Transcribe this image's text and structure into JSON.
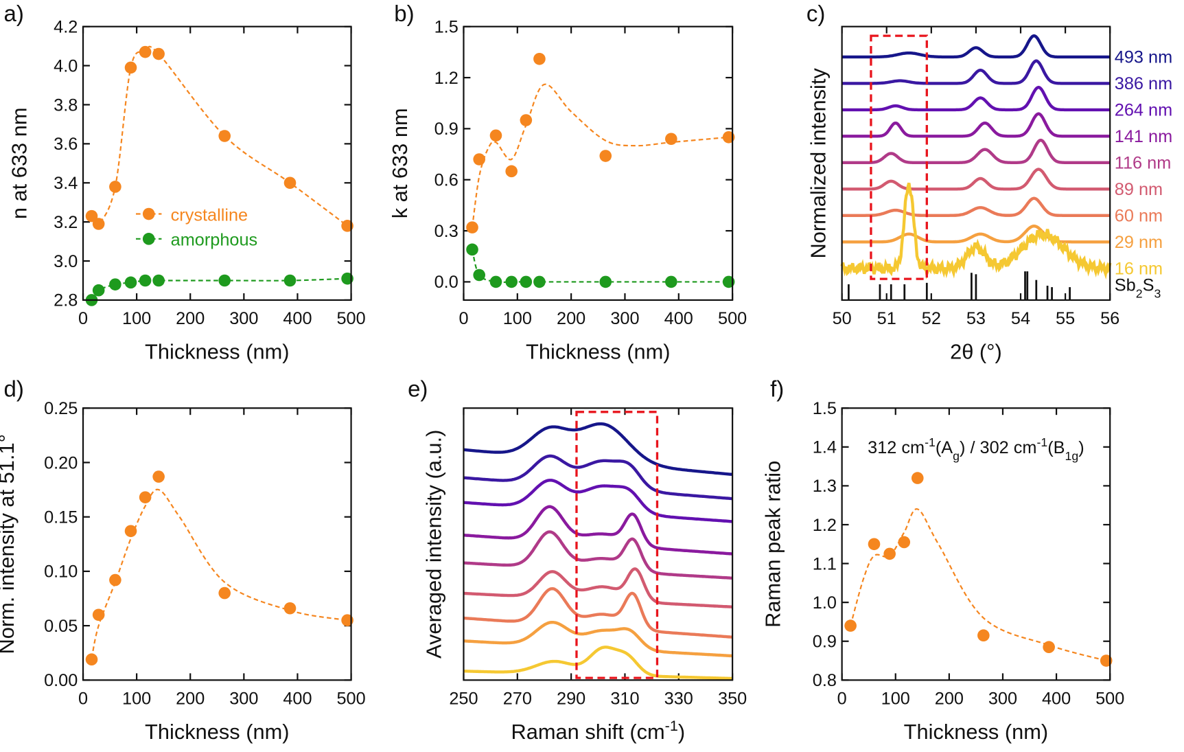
{
  "chart_data": [
    {
      "panel": "a)",
      "type": "scatter",
      "xlabel": "Thickness (nm)",
      "ylabel": "n at 633 nm",
      "xlim": [
        0,
        500
      ],
      "ylim": [
        2.8,
        4.2
      ],
      "xticks": [
        0,
        100,
        200,
        300,
        400,
        500
      ],
      "yticks": [
        2.8,
        3.0,
        3.2,
        3.4,
        3.6,
        3.8,
        4.0,
        4.2
      ],
      "ydec": 1,
      "legend": {
        "placement": "center-left",
        "entries": [
          "crystalline",
          "amorphous"
        ]
      },
      "series": [
        {
          "name": "crystalline",
          "color": "#f5861f",
          "x": [
            16,
            29,
            60,
            89,
            116,
            141,
            264,
            386,
            493
          ],
          "y": [
            3.23,
            3.19,
            3.38,
            3.99,
            4.07,
            4.06,
            3.64,
            3.4,
            3.18
          ]
        },
        {
          "name": "amorphous",
          "color": "#1e9a1e",
          "x": [
            16,
            29,
            60,
            89,
            116,
            141,
            264,
            386,
            493
          ],
          "y": [
            2.8,
            2.85,
            2.88,
            2.89,
            2.9,
            2.9,
            2.9,
            2.9,
            2.91
          ]
        }
      ]
    },
    {
      "panel": "b)",
      "type": "scatter",
      "xlabel": "Thickness (nm)",
      "ylabel": "k at 633 nm",
      "xlim": [
        0,
        500
      ],
      "ylim": [
        -0.107,
        1.5
      ],
      "xticks": [
        0,
        100,
        200,
        300,
        400,
        500
      ],
      "yticks": [
        0.0,
        0.3,
        0.6,
        0.9,
        1.2,
        1.5
      ],
      "ydec": 1,
      "series": [
        {
          "color": "#f5861f",
          "x": [
            16,
            29,
            60,
            89,
            116,
            141,
            264,
            386,
            493
          ],
          "y": [
            0.32,
            0.72,
            0.86,
            0.65,
            0.95,
            1.31,
            0.74,
            0.84,
            0.85
          ],
          "fit": {
            "x": [
              16,
              29,
              45,
              60,
              89,
              116,
              150,
              200,
              264,
              320,
              386,
              493
            ],
            "y": [
              0.32,
              0.62,
              0.78,
              0.82,
              0.72,
              0.92,
              1.16,
              1.0,
              0.83,
              0.8,
              0.82,
              0.85
            ]
          }
        },
        {
          "color": "#1e9a1e",
          "x": [
            16,
            29,
            60,
            89,
            116,
            141,
            264,
            386,
            493
          ],
          "y": [
            0.19,
            0.04,
            0.0,
            0.0,
            0.0,
            0.0,
            0.0,
            0.0,
            0.0
          ]
        }
      ]
    },
    {
      "panel": "c)",
      "type": "line",
      "xlabel": "2θ (°)",
      "ylabel": "Normalized intensity",
      "xlim": [
        50,
        56
      ],
      "ylim": [
        -1.2,
        9.15
      ],
      "xticks": [
        50,
        51,
        52,
        53,
        54,
        55,
        56
      ],
      "yticks": [],
      "highlight_box": {
        "x": [
          50.65,
          51.9
        ],
        "y": [
          -0.4,
          8.8
        ],
        "color": "#e8141c"
      },
      "reference": {
        "label": "Sb_{2}S_{3}",
        "positions": [
          50.15,
          50.85,
          51.1,
          51.4,
          51.9,
          52.9,
          53.0,
          54.1,
          54.15,
          54.35,
          54.6,
          54.7,
          55.1
        ],
        "intensity": [
          0.55,
          0.55,
          0.55,
          0.55,
          0.6,
          0.95,
          0.9,
          1.0,
          1.0,
          0.7,
          0.5,
          0.45,
          0.45
        ]
      },
      "traces": [
        {
          "label": "493 nm",
          "color": "#16168a",
          "offset": 8,
          "peaks": [
            [
              51.5,
              0.15,
              0.25
            ],
            [
              53.0,
              0.35,
              0.15
            ],
            [
              54.3,
              0.8,
              0.15
            ]
          ]
        },
        {
          "label": "386 nm",
          "color": "#3a18a2",
          "offset": 7,
          "peaks": [
            [
              51.3,
              0.1,
              0.2
            ],
            [
              53.1,
              0.5,
              0.15
            ],
            [
              54.35,
              0.85,
              0.15
            ]
          ]
        },
        {
          "label": "264 nm",
          "color": "#6210b0",
          "offset": 6,
          "peaks": [
            [
              51.2,
              0.15,
              0.15
            ],
            [
              53.1,
              0.45,
              0.15
            ],
            [
              54.4,
              0.85,
              0.15
            ]
          ]
        },
        {
          "label": "141 nm",
          "color": "#8a1a9e",
          "offset": 5,
          "peaks": [
            [
              51.2,
              0.5,
              0.12
            ],
            [
              53.2,
              0.5,
              0.15
            ],
            [
              54.4,
              0.85,
              0.15
            ]
          ]
        },
        {
          "label": "116 nm",
          "color": "#b03a88",
          "offset": 4,
          "peaks": [
            [
              51.1,
              0.35,
              0.15
            ],
            [
              53.2,
              0.5,
              0.17
            ],
            [
              54.45,
              0.85,
              0.15
            ]
          ]
        },
        {
          "label": "89 nm",
          "color": "#d25a70",
          "offset": 3,
          "peaks": [
            [
              51.1,
              0.3,
              0.15
            ],
            [
              53.1,
              0.4,
              0.15
            ],
            [
              54.4,
              0.75,
              0.17
            ]
          ]
        },
        {
          "label": "60 nm",
          "color": "#ea7a58",
          "offset": 2,
          "peaks": [
            [
              51.2,
              0.2,
              0.2
            ],
            [
              53.1,
              0.3,
              0.2
            ],
            [
              54.3,
              0.65,
              0.17
            ]
          ]
        },
        {
          "label": "29 nm",
          "color": "#f5a040",
          "offset": 1,
          "peaks": [
            [
              51.5,
              0.3,
              0.2
            ],
            [
              53.1,
              0.3,
              0.2
            ],
            [
              54.3,
              0.6,
              0.2
            ]
          ]
        },
        {
          "label": "16 nm",
          "color": "#f5c832",
          "offset": 0,
          "noise": 0.12,
          "peaks": [
            [
              51.5,
              3.2,
              0.1
            ],
            [
              53.0,
              0.8,
              0.2
            ],
            [
              54.5,
              1.3,
              0.45
            ]
          ]
        }
      ]
    },
    {
      "panel": "d)",
      "type": "scatter",
      "xlabel": "Thickness (nm)",
      "ylabel": "Norm. intensity at 51.1°",
      "xlim": [
        0,
        500
      ],
      "ylim": [
        0,
        0.25
      ],
      "xticks": [
        0,
        100,
        200,
        300,
        400,
        500
      ],
      "yticks": [
        0,
        0.05,
        0.1,
        0.15,
        0.2,
        0.25
      ],
      "ydec": 2,
      "series": [
        {
          "color": "#f5861f",
          "x": [
            16,
            29,
            60,
            89,
            116,
            141,
            264,
            386,
            493
          ],
          "y": [
            0.019,
            0.06,
            0.092,
            0.137,
            0.168,
            0.187,
            0.08,
            0.066,
            0.055
          ],
          "fit": {
            "x": [
              16,
              29,
              60,
              89,
              116,
              141,
              180,
              264,
              386,
              493
            ],
            "y": [
              0.02,
              0.05,
              0.09,
              0.13,
              0.16,
              0.175,
              0.15,
              0.09,
              0.064,
              0.055
            ]
          }
        }
      ]
    },
    {
      "panel": "e)",
      "type": "line",
      "xlabel": "Raman shift (cm^{-1})",
      "ylabel": "Averaged intensity (a.u.)",
      "xlim": [
        250,
        350
      ],
      "ylim": [
        0,
        10
      ],
      "xticks": [
        250,
        270,
        290,
        310,
        330,
        350
      ],
      "yticks": [],
      "highlight_box": {
        "x": [
          292,
          322
        ],
        "y": [
          0.08,
          9.86
        ],
        "color": "#e8141c"
      },
      "traces": [
        {
          "label": "493 nm",
          "color": "#16168a",
          "baseline": [
            8.47,
            7.56
          ],
          "peaks": [
            [
              282,
              1.0,
              7
            ],
            [
              302,
              1.4,
              9
            ]
          ]
        },
        {
          "label": "386 nm",
          "color": "#3a18a2",
          "baseline": [
            7.44,
            6.67
          ],
          "peaks": [
            [
              282,
              1.0,
              6
            ],
            [
              302,
              1.0,
              8
            ],
            [
              312,
              0.5,
              4
            ]
          ]
        },
        {
          "label": "264 nm",
          "color": "#6210b0",
          "baseline": [
            6.53,
            5.83
          ],
          "peaks": [
            [
              282,
              1.0,
              6
            ],
            [
              302,
              0.95,
              8
            ],
            [
              312,
              0.45,
              4
            ]
          ]
        },
        {
          "label": "141 nm",
          "color": "#8a1a9e",
          "baseline": [
            5.33,
            4.64
          ],
          "peaks": [
            [
              282,
              1.25,
              5
            ],
            [
              302,
              0.4,
              8
            ],
            [
              313,
              1.05,
              3
            ]
          ]
        },
        {
          "label": "116 nm",
          "color": "#b03a88",
          "baseline": [
            4.31,
            3.75
          ],
          "peaks": [
            [
              282,
              1.3,
              5
            ],
            [
              302,
              0.45,
              8
            ],
            [
              313,
              1.05,
              3
            ]
          ]
        },
        {
          "label": "89 nm",
          "color": "#d25a70",
          "baseline": [
            3.19,
            2.69
          ],
          "peaks": [
            [
              283,
              0.95,
              5
            ],
            [
              302,
              0.5,
              7
            ],
            [
              314,
              1.1,
              3
            ]
          ]
        },
        {
          "label": "60 nm",
          "color": "#ea7a58",
          "baseline": [
            2.28,
            1.58
          ],
          "peaks": [
            [
              283,
              1.3,
              5
            ],
            [
              302,
              0.5,
              7
            ],
            [
              313,
              1.2,
              3
            ]
          ]
        },
        {
          "label": "29 nm",
          "color": "#f5a040",
          "baseline": [
            1.44,
            0.89
          ],
          "peaks": [
            [
              283,
              0.85,
              6
            ],
            [
              302,
              0.65,
              7
            ],
            [
              312,
              0.5,
              4
            ]
          ]
        },
        {
          "label": "16 nm",
          "color": "#f5c832",
          "baseline": [
            0.33,
            0.06
          ],
          "peaks": [
            [
              284,
              0.45,
              7
            ],
            [
              302,
              0.95,
              5
            ],
            [
              311,
              0.6,
              4
            ]
          ]
        }
      ]
    },
    {
      "panel": "f)",
      "type": "scatter",
      "xlabel": "Thickness (nm)",
      "ylabel": "Raman peak ratio",
      "xlim": [
        0,
        500
      ],
      "ylim": [
        0.8,
        1.5
      ],
      "xticks": [
        0,
        100,
        200,
        300,
        400,
        500
      ],
      "yticks": [
        0.8,
        0.9,
        1.0,
        1.1,
        1.2,
        1.3,
        1.4,
        1.5
      ],
      "ydec": 1,
      "annotation": "312 cm^{-1}(A_{g}) / 302 cm^{-1}(B_{1g})",
      "series": [
        {
          "color": "#f5861f",
          "x": [
            16,
            60,
            89,
            116,
            141,
            264,
            386,
            493
          ],
          "y": [
            0.94,
            1.15,
            1.125,
            1.155,
            1.32,
            0.915,
            0.885,
            0.85
          ],
          "fit": {
            "x": [
              16,
              40,
              60,
              89,
              116,
              141,
              180,
              264,
              386,
              493
            ],
            "y": [
              0.94,
              1.06,
              1.12,
              1.12,
              1.18,
              1.24,
              1.15,
              0.96,
              0.89,
              0.85
            ]
          }
        }
      ]
    }
  ]
}
